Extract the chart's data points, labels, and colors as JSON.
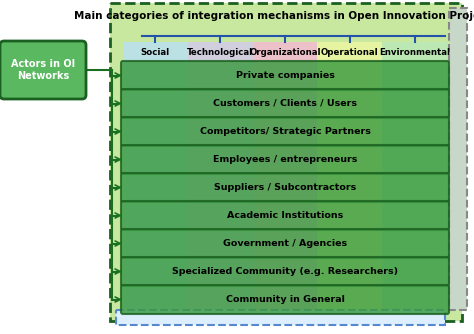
{
  "title": "Main categories of integration mechanisms in Open Innovation Projects",
  "left_box_text": "Actors in OI\nNetworks",
  "categories": [
    "Social",
    "Technological",
    "Organizational",
    "Operational",
    "Environmental"
  ],
  "category_colors": [
    "#b8e0f7",
    "#d4c8ee",
    "#f7b8d4",
    "#eef7a0",
    "#b8e8b8"
  ],
  "rows": [
    "Private companies",
    "Customers / Clients / Users",
    "Competitors/ Strategic Partners",
    "Employees / entrepreneurs",
    "Suppliers / Subcontractors",
    "Academic Institutions",
    "Government / Agencies",
    "Specialized Community (e.g. Researchers)",
    "Community in General"
  ],
  "row_box_color": "#3a9a40",
  "row_box_edge_color": "#1a6020",
  "outer_bg_color": "#c8e8a0",
  "left_box_bg": "#5ab860",
  "left_box_edge": "#1a6020",
  "connector_color": "#1a7020",
  "title_color": "#000000",
  "bottom_dashed_color": "#5588cc",
  "right_panel_color": "#c8d8c8",
  "fig_width": 4.74,
  "fig_height": 3.34,
  "dpi": 100
}
